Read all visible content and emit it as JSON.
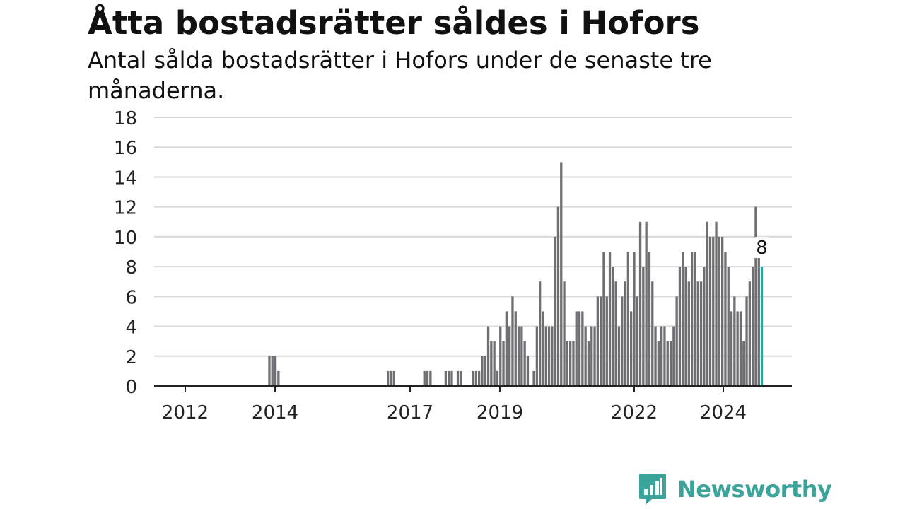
{
  "chart_data": {
    "type": "bar",
    "title": "Åtta bostadsrätter såldes i Hofors",
    "subtitle": "Antal sålda bostadsrätter i Hofors under de senaste tre månaderna.",
    "ylim": [
      0,
      18
    ],
    "y_ticks": [
      0,
      2,
      4,
      6,
      8,
      10,
      12,
      14,
      16,
      18
    ],
    "x_ticks": [
      "2012",
      "2014",
      "2017",
      "2019",
      "2022",
      "2024"
    ],
    "grid": true,
    "bar_color": "#6e6e73",
    "highlight_color": "#2ba89c",
    "highlight_label": "8",
    "values": [
      0,
      0,
      0,
      0,
      0,
      0,
      0,
      0,
      0,
      0,
      0,
      0,
      0,
      0,
      0,
      0,
      0,
      0,
      0,
      0,
      0,
      0,
      0,
      0,
      0,
      0,
      0,
      0,
      0,
      0,
      0,
      0,
      0,
      0,
      0,
      0,
      2,
      2,
      2,
      1,
      0,
      0,
      0,
      0,
      0,
      0,
      0,
      0,
      0,
      0,
      0,
      0,
      0,
      0,
      0,
      0,
      0,
      0,
      0,
      0,
      0,
      0,
      0,
      0,
      0,
      0,
      0,
      0,
      0,
      0,
      0,
      0,
      0,
      0,
      0,
      1,
      1,
      1,
      0,
      0,
      0,
      0,
      0,
      0,
      0,
      0,
      0,
      1,
      1,
      1,
      0,
      0,
      0,
      0,
      1,
      1,
      1,
      0,
      1,
      1,
      0,
      0,
      0,
      1,
      1,
      1,
      2,
      2,
      4,
      3,
      3,
      1,
      4,
      3,
      5,
      4,
      6,
      5,
      4,
      4,
      3,
      2,
      0,
      1,
      4,
      7,
      5,
      4,
      4,
      4,
      10,
      12,
      15,
      7,
      3,
      3,
      3,
      5,
      5,
      5,
      4,
      3,
      4,
      4,
      6,
      6,
      9,
      6,
      9,
      8,
      7,
      4,
      6,
      7,
      9,
      5,
      9,
      6,
      11,
      8,
      11,
      9,
      7,
      4,
      3,
      4,
      4,
      3,
      3,
      4,
      6,
      8,
      9,
      8,
      7,
      9,
      9,
      7,
      7,
      8,
      11,
      10,
      10,
      11,
      10,
      10,
      9,
      8,
      5,
      6,
      5,
      5,
      3,
      6,
      7,
      8,
      12,
      9,
      8
    ]
  },
  "brand": {
    "name": "Newsworthy"
  }
}
